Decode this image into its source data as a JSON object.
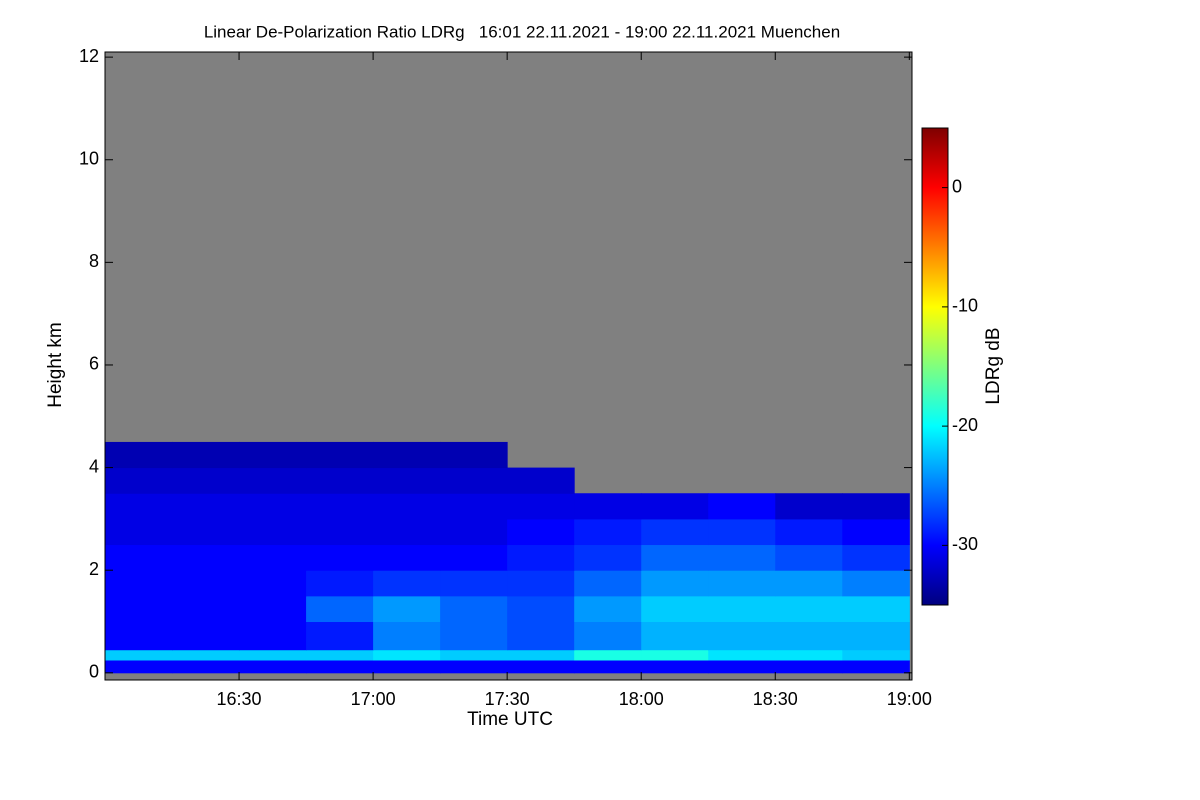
{
  "chart_data": {
    "type": "heatmap",
    "title": "Linear De-Polarization Ratio LDRg   16:01 22.11.2021 - 19:00 22.11.2021 Muenchen",
    "xlabel": "Time UTC",
    "ylabel": "Height km",
    "colorbar_label": "LDRg dB",
    "x": [
      16.0,
      16.25,
      16.5,
      16.75,
      17.0,
      17.25,
      17.5,
      17.75,
      18.0,
      18.25,
      18.5,
      18.75,
      19.0
    ],
    "y": [
      0,
      0.25,
      0.45,
      1,
      1.5,
      2,
      2.5,
      3,
      3.5,
      4,
      4.5
    ],
    "z": [
      [
        -30,
        -30,
        -30,
        -30,
        -30,
        -30,
        -30,
        -30,
        -30,
        -30,
        -30,
        -30
      ],
      [
        -22,
        -22,
        -22,
        -22,
        -21,
        -22,
        -22,
        -19,
        -19,
        -21,
        -21,
        -22
      ],
      [
        -30,
        -30,
        -30,
        -29,
        -25,
        -26,
        -27,
        -25,
        -23,
        -23,
        -23,
        -23
      ],
      [
        -30,
        -30,
        -30,
        -26,
        -24,
        -26,
        -27,
        -24,
        -22,
        -22,
        -22,
        -22
      ],
      [
        -30,
        -30,
        -30,
        -29,
        -28,
        -28,
        -28,
        -26,
        -24,
        -24,
        -24,
        -25
      ],
      [
        -30,
        -30,
        -30,
        -30,
        -30,
        -30,
        -29,
        -28,
        -26,
        -26,
        -27,
        -28
      ],
      [
        -31,
        -31,
        -31,
        -31,
        -31,
        -31,
        -30,
        -29,
        -28,
        -28,
        -29,
        -30
      ],
      [
        -31,
        -31,
        -31,
        -31,
        -31,
        -31,
        -31,
        -31,
        -31,
        -30,
        -32,
        -32
      ],
      [
        -32,
        -32,
        -32,
        -32,
        -32,
        -32,
        -32,
        null,
        null,
        null,
        null,
        null
      ],
      [
        -33,
        -33,
        -33,
        -33,
        -33,
        -33,
        null,
        null,
        null,
        null,
        null,
        null
      ]
    ],
    "xlim": [
      16.0,
      19.01
    ],
    "xticks": [
      {
        "value": 16.5,
        "label": "16:30"
      },
      {
        "value": 17.0,
        "label": "17:00"
      },
      {
        "value": 17.5,
        "label": "17:30"
      },
      {
        "value": 18.0,
        "label": "18:00"
      },
      {
        "value": 18.5,
        "label": "18:30"
      },
      {
        "value": 19.0,
        "label": "19:00"
      }
    ],
    "ylim": [
      -0.14,
      12.1
    ],
    "yticks": [
      0,
      2,
      4,
      6,
      8,
      10,
      12
    ],
    "zlim": [
      -35,
      5
    ],
    "zticks": [
      0,
      -10,
      -20,
      -30
    ],
    "colorscale": [
      "#00007f",
      "#0000ff",
      "#007fff",
      "#00ffff",
      "#7fff7f",
      "#ffff00",
      "#ff7f00",
      "#ff0000",
      "#7f0000"
    ],
    "na_color": "#808080"
  }
}
